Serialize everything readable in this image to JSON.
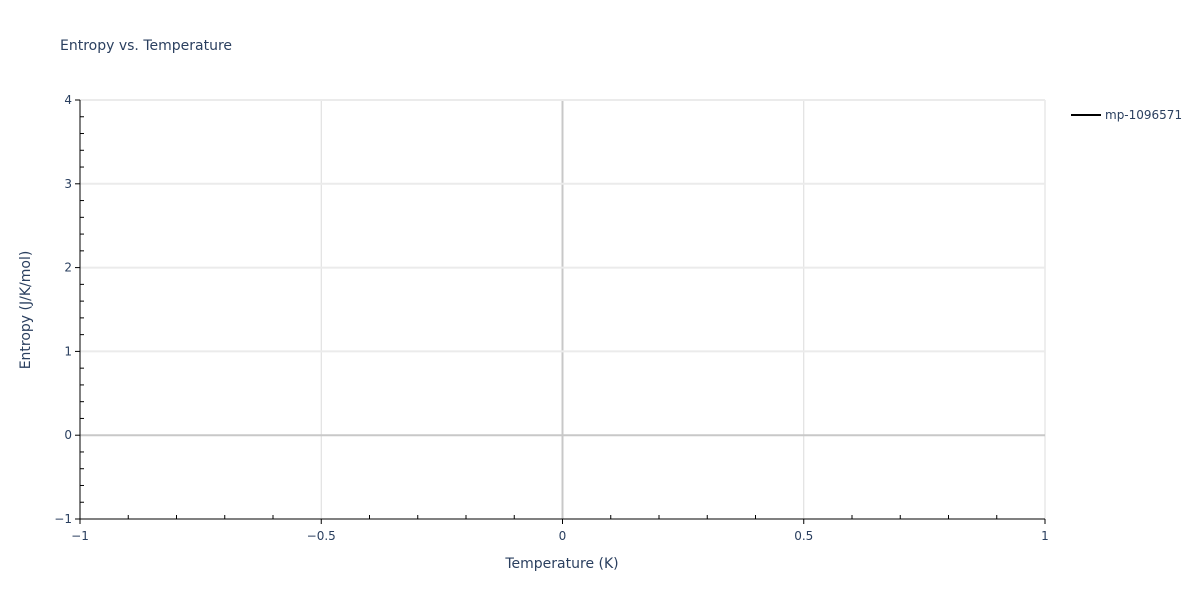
{
  "chart_data": {
    "type": "line",
    "title": "Entropy vs. Temperature",
    "xlabel": "Temperature (K)",
    "ylabel": "Entropy (J/K/mol)",
    "xlim": [
      -1,
      1
    ],
    "ylim": [
      -1,
      4
    ],
    "x_ticks": [
      -1,
      -0.5,
      0,
      0.5,
      1
    ],
    "x_tick_labels": [
      "−1",
      "−0.5",
      "0",
      "0.5",
      "1"
    ],
    "y_ticks": [
      -1,
      0,
      1,
      2,
      3,
      4
    ],
    "y_tick_labels": [
      "−1",
      "0",
      "1",
      "2",
      "3",
      "4"
    ],
    "grid": true,
    "legend_position": "top-right",
    "series": [
      {
        "name": "mp-1096571",
        "color": "#000000",
        "x": [],
        "y": []
      }
    ]
  }
}
